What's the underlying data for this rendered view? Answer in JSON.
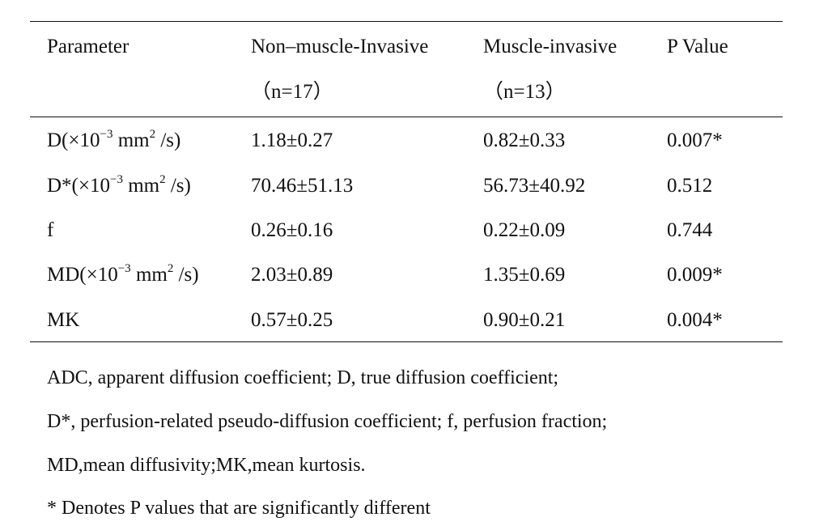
{
  "table": {
    "headers": {
      "parameter": "Parameter",
      "group1": "Non–muscle-Invasive",
      "group1_n": "（n=17）",
      "group2": "Muscle-invasive",
      "group2_n": "（n=13）",
      "pvalue": "P Value"
    },
    "rows": [
      {
        "param_base": "D(×10",
        "param_exp": "−3",
        "param_mid": " mm",
        "param_exp2": "2",
        "param_end": " /s)",
        "g1": "1.18±0.27",
        "g2": "0.82±0.33",
        "p": "0.007*"
      },
      {
        "param_base": "D*(×10",
        "param_exp": "−3",
        "param_mid": " mm",
        "param_exp2": "2",
        "param_end": " /s)",
        "g1": "70.46±51.13",
        "g2": "56.73±40.92",
        "p": "0.512"
      },
      {
        "param": "f",
        "g1": "0.26±0.16",
        "g2": "0.22±0.09",
        "p": "0.744"
      },
      {
        "param_base": "MD(×10",
        "param_exp": "−3",
        "param_mid": " mm",
        "param_exp2": "2",
        "param_end": " /s)",
        "g1": "2.03±0.89",
        "g2": "1.35±0.69",
        "p": "0.009*"
      },
      {
        "param": "MK",
        "g1": "0.57±0.25",
        "g2": "0.90±0.21",
        "p": "0.004*"
      }
    ]
  },
  "notes": [
    "ADC, apparent diffusion coefficient; D, true diffusion coefficient;",
    "D*, perfusion-related pseudo-diffusion coefficient; f, perfusion fraction;",
    "MD,mean diffusivity;MK,mean kurtosis.",
    "* Denotes P values that are significantly different"
  ]
}
